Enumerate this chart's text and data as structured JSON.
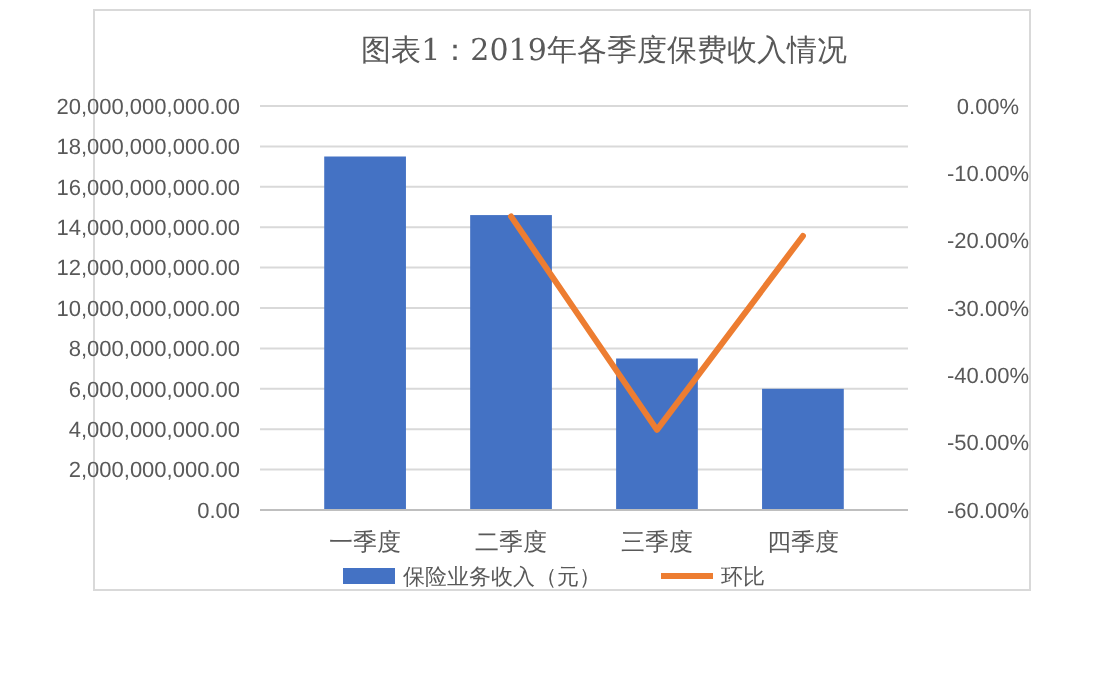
{
  "chart_data": {
    "type": "bar",
    "title": "图表1：2019年各季度保费收入情况",
    "categories": [
      "一季度",
      "二季度",
      "三季度",
      "四季度"
    ],
    "series": [
      {
        "name": "保险业务收入（元）",
        "color": "#4472c4",
        "values": [
          17500000000,
          14600000000,
          7500000000,
          6000000000
        ]
      },
      {
        "name": "环比",
        "type": "line",
        "axis": "y2",
        "color": "#ed7d31",
        "values": [
          null,
          -16.4,
          -48.1,
          -19.3
        ]
      }
    ],
    "ylim": [
      0,
      20000000000
    ],
    "yticks": [
      {
        "value": 0,
        "label": "0.00"
      },
      {
        "value": 2000000000,
        "label": "2,000,000,000.00"
      },
      {
        "value": 4000000000,
        "label": "4,000,000,000.00"
      },
      {
        "value": 6000000000,
        "label": "6,000,000,000.00"
      },
      {
        "value": 8000000000,
        "label": "8,000,000,000.00"
      },
      {
        "value": 10000000000,
        "label": "10,000,000,000.00"
      },
      {
        "value": 12000000000,
        "label": "12,000,000,000.00"
      },
      {
        "value": 14000000000,
        "label": "14,000,000,000.00"
      },
      {
        "value": 16000000000,
        "label": "16,000,000,000.00"
      },
      {
        "value": 18000000000,
        "label": "18,000,000,000.00"
      },
      {
        "value": 20000000000,
        "label": "20,000,000,000.00"
      }
    ],
    "y2lim": [
      -60,
      0
    ],
    "y2ticks": [
      {
        "value": 0,
        "label": "0.00%"
      },
      {
        "value": -10,
        "label": "-10.00%"
      },
      {
        "value": -20,
        "label": "-20.00%"
      },
      {
        "value": -30,
        "label": "-30.00%"
      },
      {
        "value": -40,
        "label": "-40.00%"
      },
      {
        "value": -50,
        "label": "-50.00%"
      },
      {
        "value": -60,
        "label": "-60.00%"
      }
    ],
    "grid": "y",
    "legend": "bottom"
  }
}
